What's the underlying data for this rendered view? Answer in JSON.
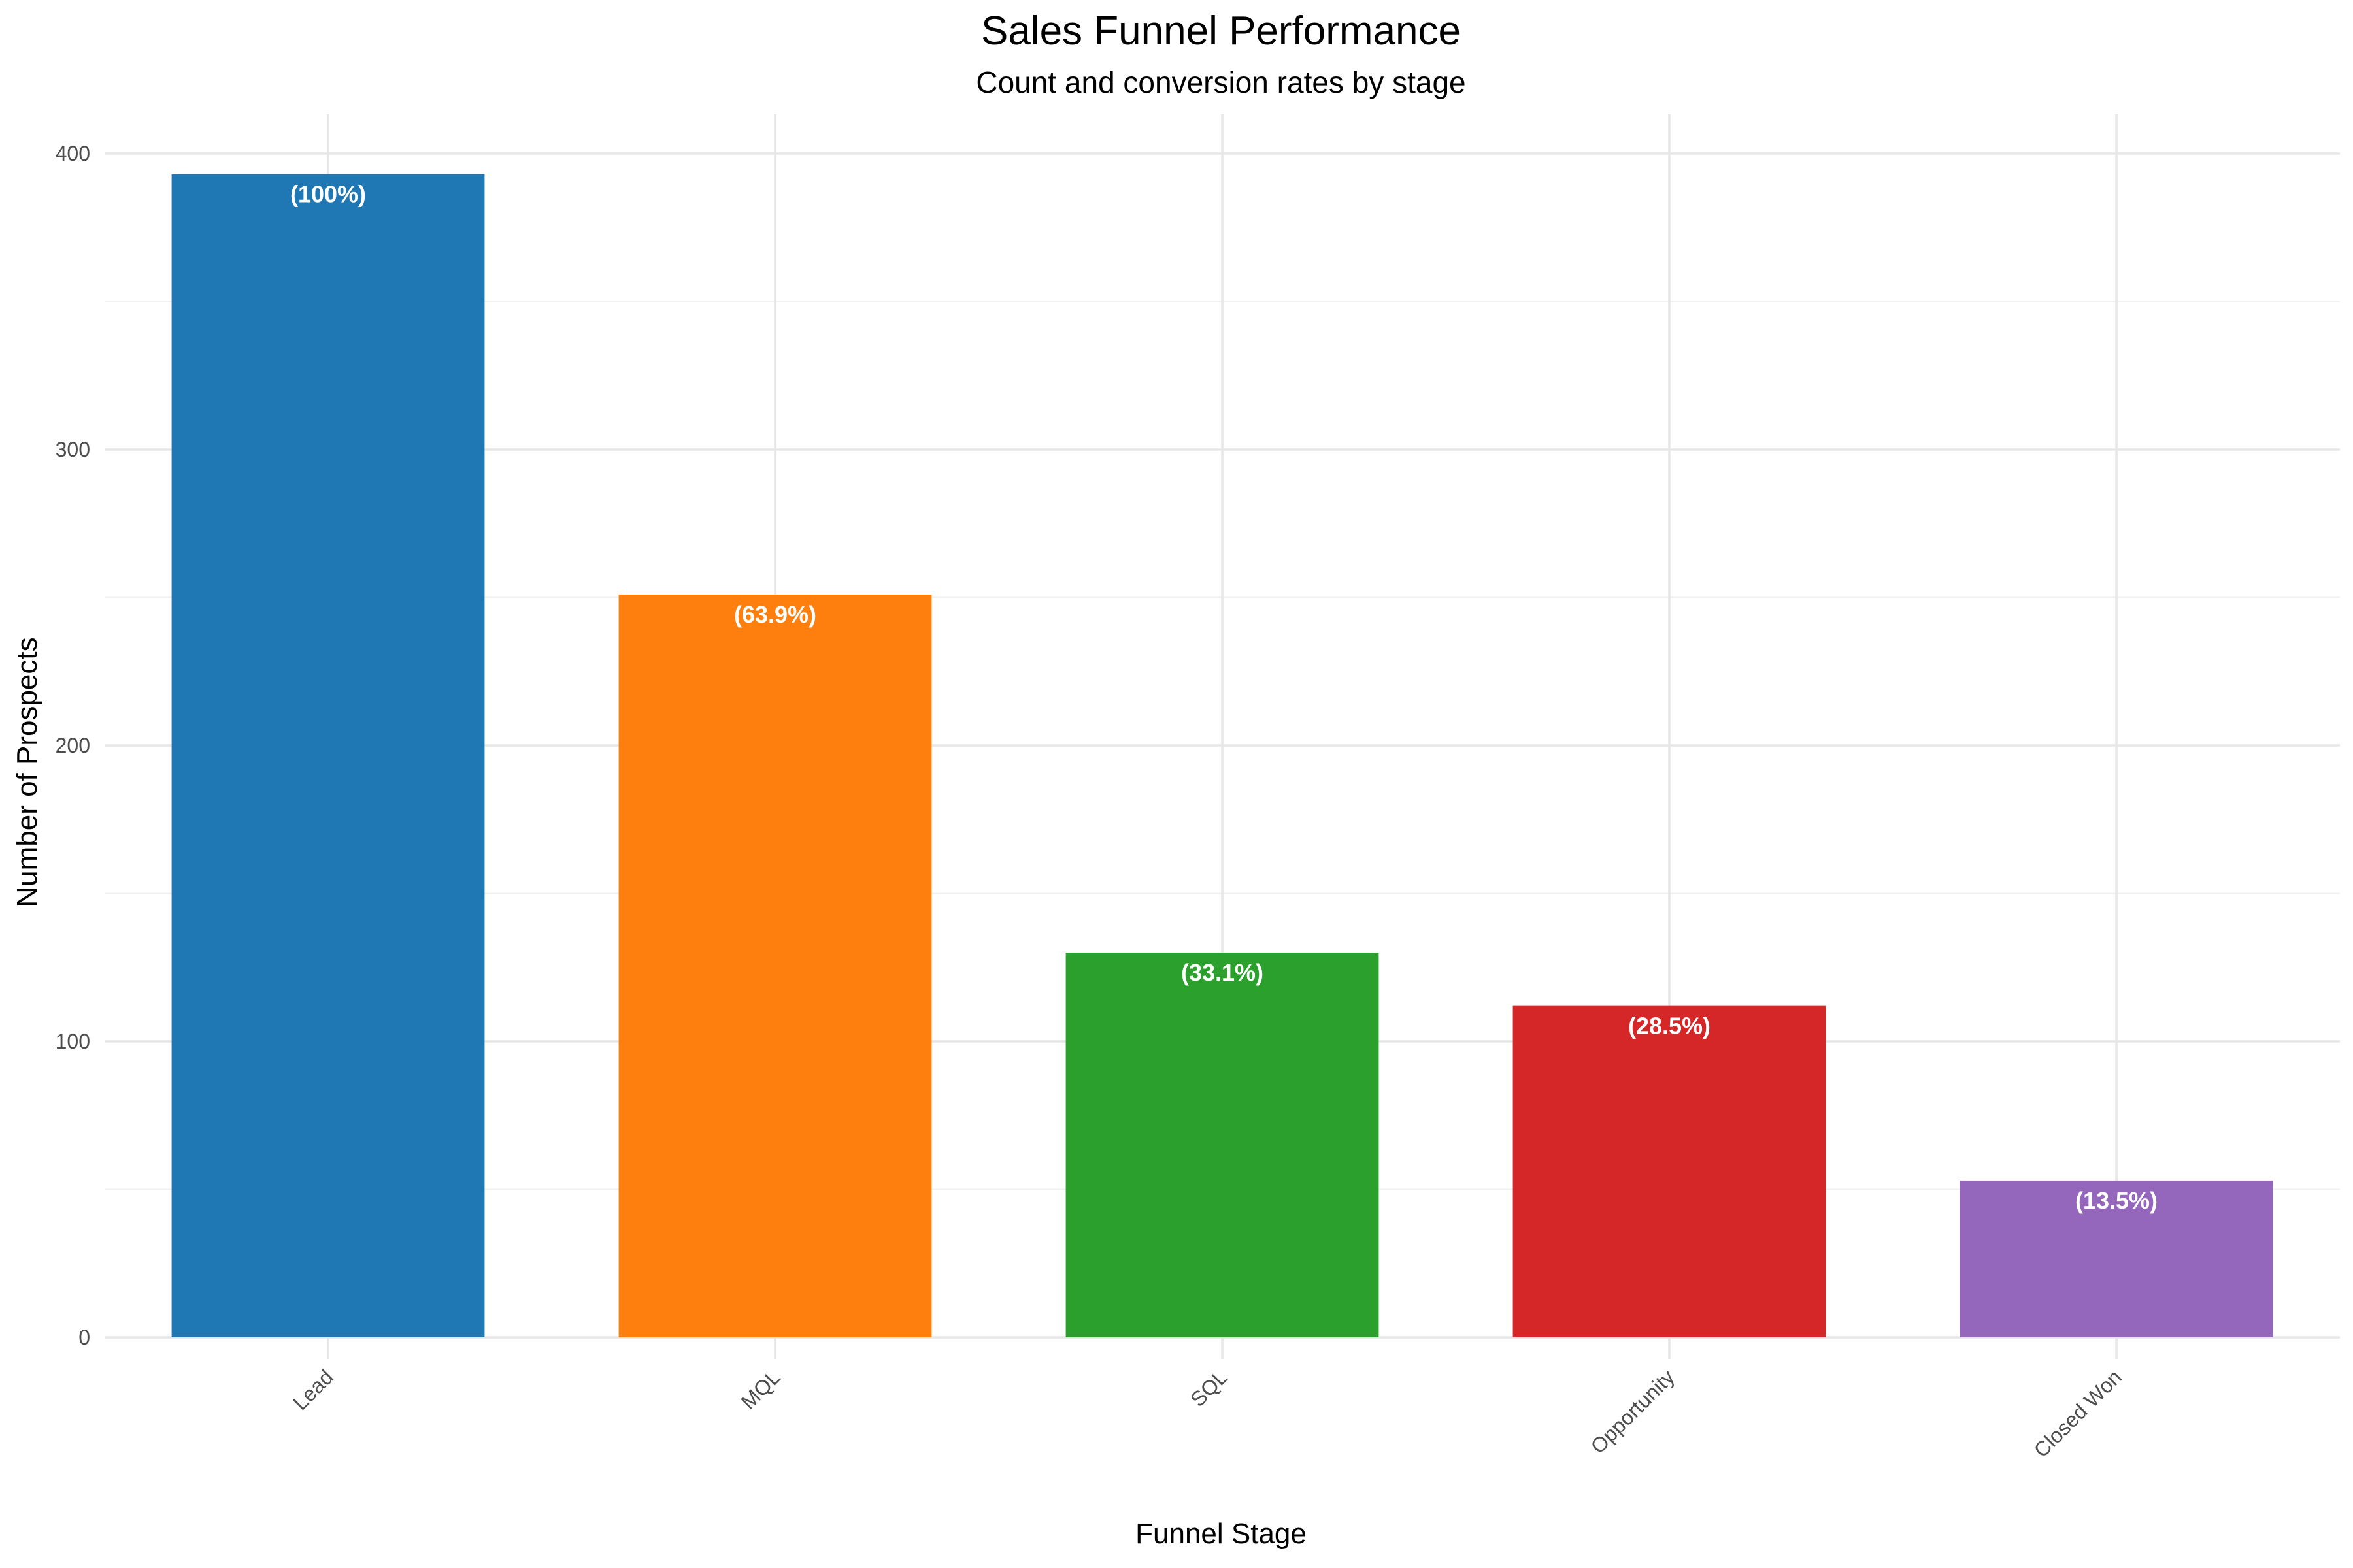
{
  "chart_data": {
    "type": "bar",
    "title": "Sales Funnel Performance",
    "subtitle": "Count and conversion rates by stage",
    "xlabel": "Funnel Stage",
    "ylabel": "Number of Prospects",
    "categories": [
      "Lead",
      "MQL",
      "SQL",
      "Opportunity",
      "Closed Won"
    ],
    "values": [
      393,
      251,
      130,
      112,
      53
    ],
    "labels": [
      "(100%)",
      "(63.9%)",
      "(33.1%)",
      "(28.5%)",
      "(13.5%)"
    ],
    "colors": [
      "#1f77b4",
      "#ff7f0e",
      "#2ca02c",
      "#d62728",
      "#9467bd"
    ],
    "ylim": [
      0,
      400
    ],
    "yticks": [
      0,
      100,
      200,
      300,
      400
    ],
    "grid": true,
    "legend": "none"
  }
}
